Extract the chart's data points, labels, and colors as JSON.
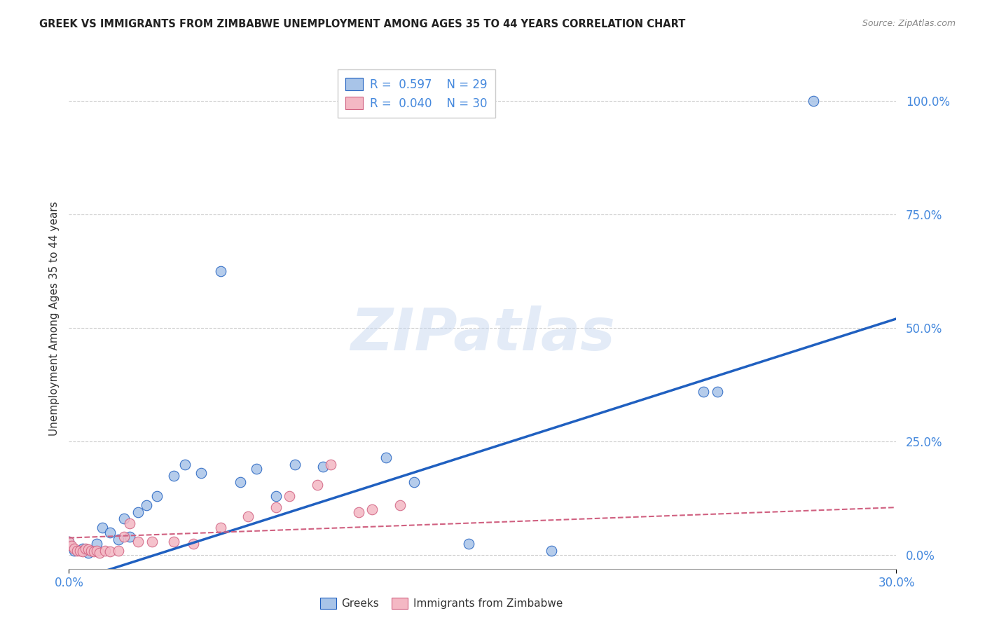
{
  "title": "GREEK VS IMMIGRANTS FROM ZIMBABWE UNEMPLOYMENT AMONG AGES 35 TO 44 YEARS CORRELATION CHART",
  "source": "Source: ZipAtlas.com",
  "ylabel": "Unemployment Among Ages 35 to 44 years",
  "x_min": 0.0,
  "x_max": 0.3,
  "y_min": -0.03,
  "y_max": 1.07,
  "watermark": "ZIPatlas",
  "legend_label1": "Greeks",
  "legend_label2": "Immigrants from Zimbabwe",
  "R1": "0.597",
  "N1": "29",
  "R2": "0.040",
  "N2": "30",
  "color_blue": "#a8c4e8",
  "color_pink": "#f4b8c4",
  "line_color_blue": "#2060c0",
  "line_color_pink": "#d06080",
  "greek_x": [
    0.0,
    0.002,
    0.005,
    0.007,
    0.01,
    0.012,
    0.015,
    0.018,
    0.02,
    0.022,
    0.025,
    0.028,
    0.032,
    0.038,
    0.042,
    0.048,
    0.055,
    0.062,
    0.068,
    0.075,
    0.082,
    0.092,
    0.115,
    0.125,
    0.145,
    0.175,
    0.23,
    0.235,
    0.27
  ],
  "greek_y": [
    0.03,
    0.01,
    0.015,
    0.005,
    0.025,
    0.06,
    0.05,
    0.035,
    0.08,
    0.04,
    0.095,
    0.11,
    0.13,
    0.175,
    0.2,
    0.18,
    0.625,
    0.16,
    0.19,
    0.13,
    0.2,
    0.195,
    0.215,
    0.16,
    0.025,
    0.01,
    0.36,
    0.36,
    1.0
  ],
  "zimb_x": [
    0.0,
    0.001,
    0.002,
    0.003,
    0.004,
    0.005,
    0.006,
    0.007,
    0.008,
    0.009,
    0.01,
    0.011,
    0.013,
    0.015,
    0.018,
    0.02,
    0.022,
    0.025,
    0.03,
    0.038,
    0.045,
    0.055,
    0.065,
    0.075,
    0.08,
    0.09,
    0.095,
    0.105,
    0.11,
    0.12
  ],
  "zimb_y": [
    0.03,
    0.02,
    0.015,
    0.01,
    0.01,
    0.008,
    0.015,
    0.012,
    0.01,
    0.008,
    0.01,
    0.005,
    0.01,
    0.008,
    0.01,
    0.04,
    0.07,
    0.03,
    0.03,
    0.03,
    0.025,
    0.06,
    0.085,
    0.105,
    0.13,
    0.155,
    0.2,
    0.095,
    0.1,
    0.11
  ],
  "blue_line_x": [
    0.0,
    0.3
  ],
  "blue_line_y": [
    -0.06,
    0.52
  ],
  "pink_line_x": [
    0.0,
    0.3
  ],
  "pink_line_y": [
    0.038,
    0.105
  ],
  "ytick_positions": [
    0.0,
    0.25,
    0.5,
    0.75,
    1.0
  ],
  "ytick_labels": [
    "0.0%",
    "25.0%",
    "50.0%",
    "75.0%",
    "100.0%"
  ],
  "xtick_positions": [
    0.0,
    0.3
  ],
  "xtick_labels": [
    "0.0%",
    "30.0%"
  ],
  "grid_color": "#cccccc",
  "tick_color": "#4488dd",
  "title_color": "#222222",
  "source_color": "#888888",
  "ylabel_color": "#333333",
  "watermark_color": "#c8d8f0"
}
